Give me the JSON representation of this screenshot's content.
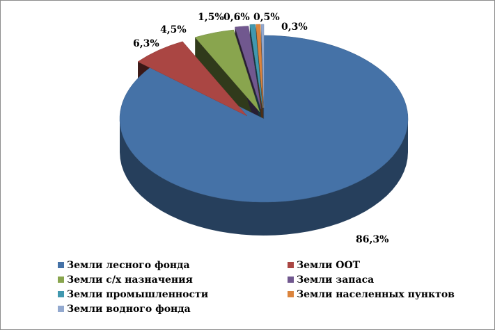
{
  "chart_data": {
    "type": "pie",
    "style": "3d-exploded",
    "categories": [
      "Земли лесного фонда",
      "Земли ООТ",
      "Земли с/х назначения",
      "Земли запаса",
      "Земли промышленности",
      "Земли населенных пунктов",
      "Земли водного фонда"
    ],
    "values": [
      86.3,
      6.3,
      4.5,
      1.5,
      0.6,
      0.5,
      0.3
    ],
    "data_labels": [
      "86,3%",
      "6,3%",
      "4,5%",
      "1,5%",
      "0,6%",
      "0,5%",
      "0,3%"
    ],
    "colors": [
      "#4572A7",
      "#AA4643",
      "#89A54E",
      "#71588F",
      "#4198AF",
      "#DB843D",
      "#93A9CF"
    ],
    "legend_position": "bottom",
    "title": ""
  }
}
